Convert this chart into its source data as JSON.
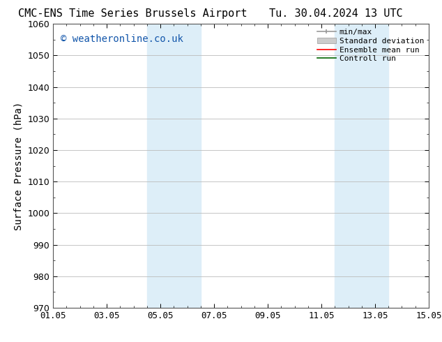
{
  "title_left": "CMC-ENS Time Series Brussels Airport",
  "title_right": "Tu. 30.04.2024 13 UTC",
  "ylabel": "Surface Pressure (hPa)",
  "xlim": [
    0,
    14
  ],
  "ylim": [
    970,
    1060
  ],
  "yticks": [
    970,
    980,
    990,
    1000,
    1010,
    1020,
    1030,
    1040,
    1050,
    1060
  ],
  "xtick_labels": [
    "01.05",
    "03.05",
    "05.05",
    "07.05",
    "09.05",
    "11.05",
    "13.05",
    "15.05"
  ],
  "xtick_positions": [
    0,
    2,
    4,
    6,
    8,
    10,
    12,
    14
  ],
  "shaded_bands": [
    {
      "xmin": 3.5,
      "xmax": 5.5
    },
    {
      "xmin": 10.5,
      "xmax": 12.5
    }
  ],
  "shade_color": "#ddeef8",
  "watermark_text": "© weatheronline.co.uk",
  "watermark_color": "#1155aa",
  "legend_entries": [
    {
      "label": "min/max"
    },
    {
      "label": "Standard deviation"
    },
    {
      "label": "Ensemble mean run"
    },
    {
      "label": "Controll run"
    }
  ],
  "bg_color": "#ffffff",
  "grid_color": "#bbbbbb",
  "title_fontsize": 11,
  "tick_fontsize": 9,
  "ylabel_fontsize": 10,
  "watermark_fontsize": 10,
  "legend_fontsize": 8
}
